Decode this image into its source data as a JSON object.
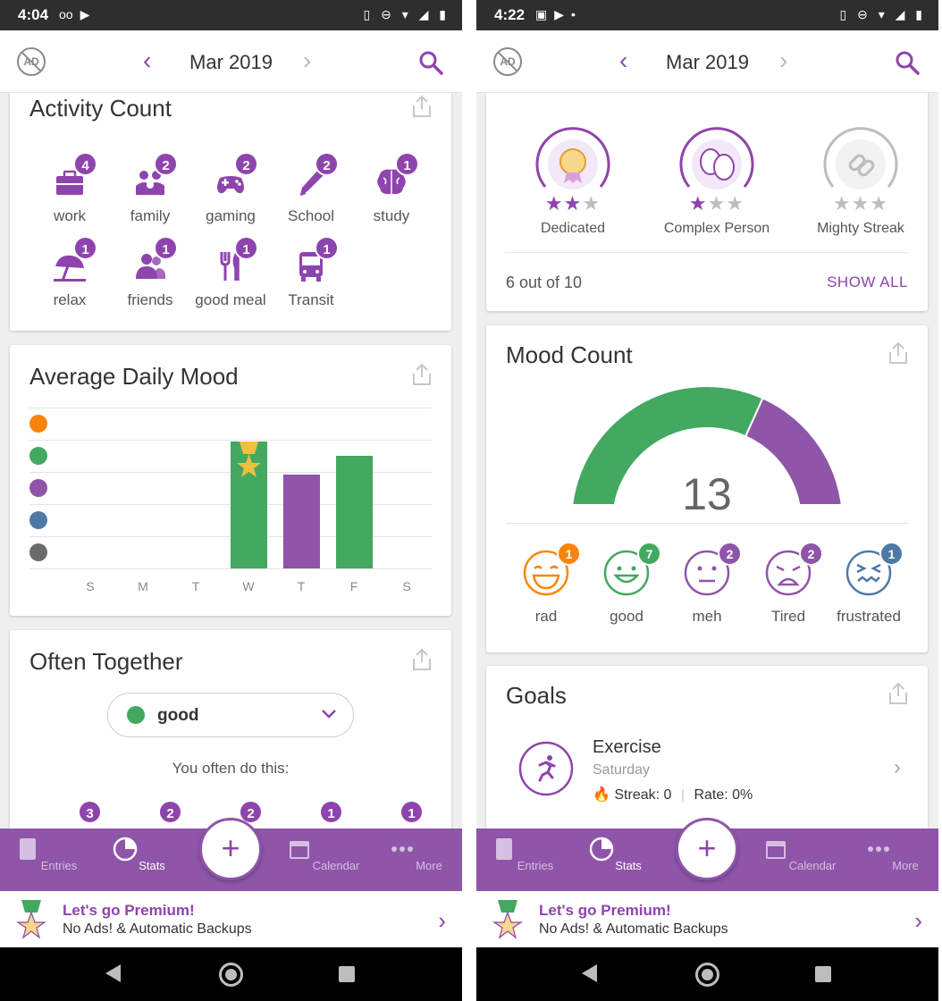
{
  "left": {
    "status_time": "4:04",
    "header": {
      "month": "Mar 2019",
      "adfree_text": "AD"
    },
    "activity_card": {
      "title": "Activity Count",
      "activities": [
        {
          "label": "work",
          "count": "4",
          "icon": "briefcase-icon"
        },
        {
          "label": "family",
          "count": "2",
          "icon": "family-icon"
        },
        {
          "label": "gaming",
          "count": "2",
          "icon": "gamepad-icon"
        },
        {
          "label": "School",
          "count": "2",
          "icon": "pen-icon"
        },
        {
          "label": "study",
          "count": "1",
          "icon": "brain-icon"
        },
        {
          "label": "relax",
          "count": "1",
          "icon": "umbrella-icon"
        },
        {
          "label": "friends",
          "count": "1",
          "icon": "friends-icon"
        },
        {
          "label": "good meal",
          "count": "1",
          "icon": "utensils-icon"
        },
        {
          "label": "Transit",
          "count": "1",
          "icon": "bus-icon"
        }
      ]
    },
    "mood_card": {
      "title": "Average Daily Mood"
    },
    "chart_data": {
      "type": "bar",
      "categories": [
        "S",
        "M",
        "T",
        "W",
        "T",
        "F",
        "S"
      ],
      "y_levels": [
        "rad",
        "good",
        "meh",
        "frustrated",
        "awful"
      ],
      "values": [
        null,
        null,
        null,
        3.5,
        2.6,
        3.1,
        null
      ],
      "bar_colors": [
        "",
        "",
        "",
        "#43a860",
        "#8e55a8",
        "#43a860",
        ""
      ],
      "ylim": [
        0,
        4
      ]
    },
    "often_card": {
      "title": "Often Together",
      "dropdown_value": "good",
      "subtitle": "You often do this:",
      "partial_badges": [
        "3",
        "2",
        "2",
        "1",
        "1"
      ]
    }
  },
  "right": {
    "status_time": "4:22",
    "header": {
      "month": "Mar 2019",
      "adfree_text": "AD"
    },
    "achievements": {
      "items": [
        {
          "label": "Dedicated",
          "stars_filled": 2,
          "stars_total": 3,
          "icon": "medal-icon"
        },
        {
          "label": "Complex Person",
          "stars_filled": 1,
          "stars_total": 3,
          "icon": "masks-icon"
        },
        {
          "label": "Mighty Streak",
          "stars_filled": 0,
          "stars_total": 3,
          "icon": "chain-icon"
        }
      ],
      "progress_text": "6 out of 10",
      "show_all": "SHOW ALL"
    },
    "mood_count": {
      "title": "Mood Count",
      "total": "13",
      "moods": [
        {
          "label": "rad",
          "count": "1",
          "color": "#f7850d"
        },
        {
          "label": "good",
          "count": "7",
          "color": "#43a860"
        },
        {
          "label": "meh",
          "count": "2",
          "color": "#8e55a8"
        },
        {
          "label": "Tired",
          "count": "2",
          "color": "#8e55a8"
        },
        {
          "label": "frustrated",
          "count": "1",
          "color": "#4e79a7"
        }
      ]
    },
    "goals": {
      "title": "Goals",
      "goal_name": "Exercise",
      "goal_day": "Saturday",
      "streak": "Streak: 0",
      "rate": "Rate: 0%"
    }
  },
  "nav": {
    "items": [
      "Entries",
      "Stats",
      "Calendar",
      "More"
    ],
    "fab": "+"
  },
  "premium": {
    "title": "Let's go Premium!",
    "subtitle": "No Ads! & Automatic Backups"
  },
  "colors": {
    "accent": "#8e44ad",
    "nav_bg": "#8e55a8",
    "rad": "#f7850d",
    "good": "#43a860",
    "meh": "#8e55a8",
    "bad": "#4e79a7",
    "awful": "#6b6b6b"
  }
}
